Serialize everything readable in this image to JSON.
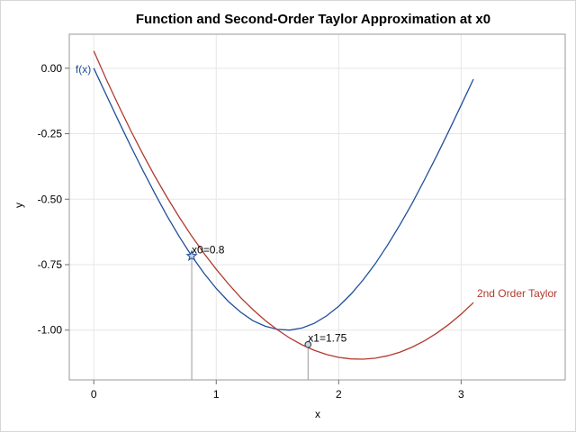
{
  "chart_data": {
    "type": "line",
    "title": "Function and Second-Order Taylor Approximation at x0",
    "xlabel": "x",
    "ylabel": "y",
    "xlim": [
      -0.2,
      3.85
    ],
    "ylim": [
      -1.19,
      0.13
    ],
    "xticks": [
      0,
      1,
      2,
      3
    ],
    "xtick_labels": [
      "0",
      "1",
      "2",
      "3"
    ],
    "yticks": [
      0.0,
      -0.25,
      -0.5,
      -0.75,
      -1.0
    ],
    "ytick_labels": [
      "0.00",
      "-0.25",
      "-0.50",
      "-0.75",
      "-1.00"
    ],
    "grid": true,
    "legend": "none",
    "series": [
      {
        "name": "f(x)",
        "color": "#1f4e9a",
        "x": [
          0,
          0.1,
          0.2,
          0.3,
          0.4,
          0.5,
          0.6,
          0.7,
          0.8,
          0.9,
          1.0,
          1.1,
          1.2,
          1.3,
          1.4,
          1.5,
          1.6,
          1.7,
          1.8,
          1.9,
          2.0,
          2.1,
          2.2,
          2.3,
          2.4,
          2.5,
          2.6,
          2.7,
          2.8,
          2.9,
          3.0,
          3.1
        ],
        "y": [
          0.0,
          -0.1,
          -0.199,
          -0.296,
          -0.389,
          -0.479,
          -0.565,
          -0.644,
          -0.717,
          -0.783,
          -0.841,
          -0.891,
          -0.932,
          -0.964,
          -0.985,
          -0.997,
          -1.0,
          -0.992,
          -0.974,
          -0.946,
          -0.909,
          -0.863,
          -0.808,
          -0.746,
          -0.675,
          -0.598,
          -0.516,
          -0.427,
          -0.335,
          -0.239,
          -0.141,
          -0.042
        ]
      },
      {
        "name": "2nd Order Taylor",
        "color": "#b03a2e",
        "x": [
          0,
          0.1,
          0.2,
          0.3,
          0.4,
          0.5,
          0.6,
          0.7,
          0.8,
          0.9,
          1.0,
          1.1,
          1.2,
          1.3,
          1.4,
          1.5,
          1.6,
          1.7,
          1.8,
          1.9,
          2.0,
          2.1,
          2.2,
          2.3,
          2.4,
          2.5,
          2.6,
          2.7,
          2.8,
          2.9,
          3.0,
          3.1
        ],
        "y": [
          0.066,
          -0.04,
          -0.14,
          -0.236,
          -0.327,
          -0.413,
          -0.494,
          -0.57,
          -0.641,
          -0.707,
          -0.768,
          -0.824,
          -0.876,
          -0.922,
          -0.963,
          -0.999,
          -1.03,
          -1.056,
          -1.077,
          -1.093,
          -1.104,
          -1.11,
          -1.111,
          -1.107,
          -1.098,
          -1.084,
          -1.065,
          -1.041,
          -1.012,
          -0.978,
          -0.939,
          -0.895
        ]
      }
    ],
    "points": [
      {
        "name": "x0",
        "label": "x0=0.8",
        "x": 0.8,
        "y": -0.717,
        "marker": "star"
      },
      {
        "name": "x1",
        "label": "x1=1.75",
        "x": 1.75,
        "y": -1.055,
        "marker": "circle"
      }
    ]
  }
}
